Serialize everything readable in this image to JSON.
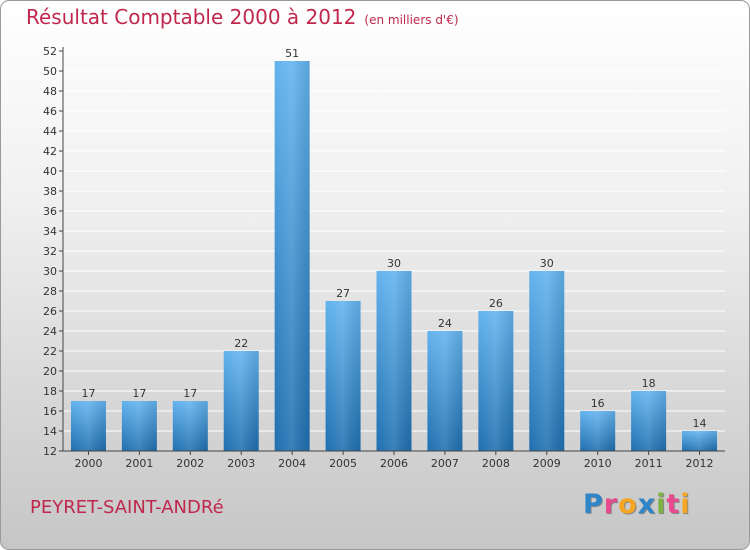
{
  "header": {
    "title": "Résultat Comptable 2000 à 2012",
    "subtitle": "(en milliers d'€)"
  },
  "footer": {
    "town": "PEYRET-SAINT-ANDRé",
    "logo_letters": [
      "P",
      "r",
      "o",
      "x",
      "i",
      "t",
      "i"
    ],
    "logo_colors": [
      "#2e86c9",
      "#e94a8f",
      "#f5a623",
      "#2e86c9",
      "#7cb342",
      "#e94a8f",
      "#f5a623"
    ]
  },
  "colors": {
    "bar_top": "#63b3ee",
    "bar_bottom": "#1f6fb0",
    "axis": "#444444",
    "grid": "#ffffff"
  },
  "chart_data": {
    "type": "bar",
    "title": "Résultat Comptable 2000 à 2012",
    "unit": "(en milliers d'€)",
    "categories": [
      "2000",
      "2001",
      "2002",
      "2003",
      "2004",
      "2005",
      "2006",
      "2007",
      "2008",
      "2009",
      "2010",
      "2011",
      "2012"
    ],
    "values": [
      17,
      17,
      17,
      22,
      51,
      27,
      30,
      24,
      26,
      30,
      16,
      18,
      14
    ],
    "ylim": [
      12,
      52
    ],
    "yticks": [
      12,
      14,
      16,
      18,
      20,
      22,
      24,
      26,
      28,
      30,
      32,
      34,
      36,
      38,
      40,
      42,
      44,
      46,
      48,
      50,
      52
    ],
    "grid": true,
    "xlabel": "",
    "ylabel": ""
  }
}
